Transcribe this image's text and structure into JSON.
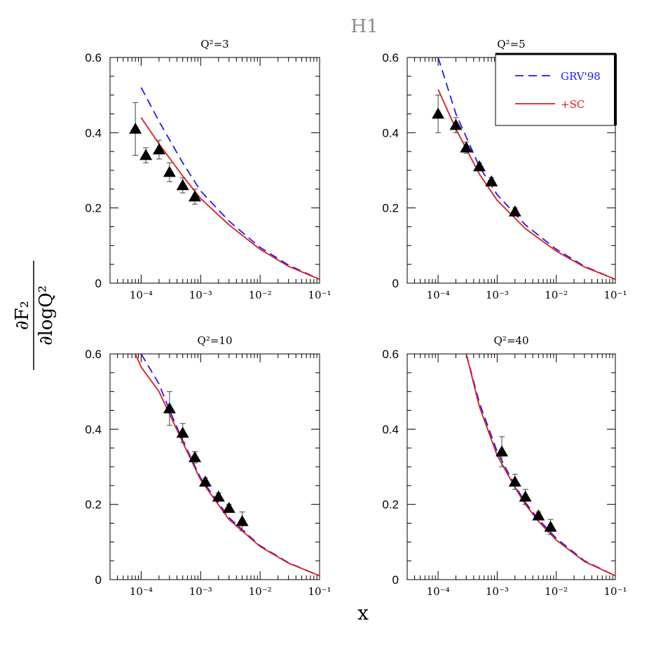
{
  "header": {
    "title": "H1"
  },
  "axes": {
    "ylabel_num": "∂F₂",
    "ylabel_den": "∂logQ²",
    "xlabel": "x"
  },
  "legend": {
    "items": [
      {
        "label": "GRV'98",
        "color": "#1a1aff",
        "dash": "dashed"
      },
      {
        "label": "+SC",
        "color": "#e01a1a",
        "dash": "solid"
      }
    ],
    "placement": "top-right of panel Q²=5"
  },
  "chart_data": [
    {
      "type": "line",
      "title": "Q²=3",
      "xscale": "log",
      "xlim": [
        3e-05,
        0.1
      ],
      "ylim": [
        0,
        0.6
      ],
      "xticklabels": [
        "10⁻⁴",
        "10⁻³",
        "10⁻²",
        "10⁻¹"
      ],
      "yticklabels": [
        "0",
        "0.2",
        "0.4",
        "0.6"
      ],
      "series": [
        {
          "name": "GRV'98",
          "x": [
            0.0001,
            0.0002,
            0.0005,
            0.001,
            0.003,
            0.01,
            0.03,
            0.1
          ],
          "y": [
            0.52,
            0.43,
            0.32,
            0.245,
            0.165,
            0.095,
            0.048,
            0.01
          ]
        },
        {
          "name": "+SC",
          "x": [
            0.0001,
            0.0002,
            0.0005,
            0.001,
            0.003,
            0.01,
            0.03,
            0.1
          ],
          "y": [
            0.44,
            0.37,
            0.285,
            0.225,
            0.155,
            0.09,
            0.045,
            0.01
          ]
        }
      ],
      "points": [
        {
          "x": 8e-05,
          "y": 0.41,
          "err": 0.07
        },
        {
          "x": 0.00012,
          "y": 0.34,
          "err": 0.02
        },
        {
          "x": 0.0002,
          "y": 0.355,
          "err": 0.025
        },
        {
          "x": 0.0003,
          "y": 0.295,
          "err": 0.025
        },
        {
          "x": 0.0005,
          "y": 0.26,
          "err": 0.02
        },
        {
          "x": 0.0008,
          "y": 0.23,
          "err": 0.02
        }
      ]
    },
    {
      "type": "line",
      "title": "Q²=5",
      "xscale": "log",
      "xlim": [
        3e-05,
        0.1
      ],
      "ylim": [
        0,
        0.6
      ],
      "xticklabels": [
        "10⁻⁴",
        "10⁻³",
        "10⁻²",
        "10⁻¹"
      ],
      "yticklabels": [
        "0",
        "0.2",
        "0.4",
        "0.6"
      ],
      "series": [
        {
          "name": "GRV'98",
          "x": [
            0.0001,
            0.0002,
            0.0005,
            0.001,
            0.003,
            0.01,
            0.03,
            0.1
          ],
          "y": [
            0.6,
            0.45,
            0.31,
            0.235,
            0.155,
            0.09,
            0.045,
            0.01
          ]
        },
        {
          "name": "+SC",
          "x": [
            0.0001,
            0.0002,
            0.0005,
            0.001,
            0.003,
            0.01,
            0.03,
            0.1
          ],
          "y": [
            0.515,
            0.41,
            0.29,
            0.22,
            0.145,
            0.085,
            0.043,
            0.01
          ]
        }
      ],
      "points": [
        {
          "x": 0.0001,
          "y": 0.45,
          "err": 0.05
        },
        {
          "x": 0.0002,
          "y": 0.42,
          "err": 0.02
        },
        {
          "x": 0.0003,
          "y": 0.36,
          "err": 0.015
        },
        {
          "x": 0.0005,
          "y": 0.31,
          "err": 0.01
        },
        {
          "x": 0.0008,
          "y": 0.27,
          "err": 0.01
        },
        {
          "x": 0.002,
          "y": 0.19,
          "err": 0.01
        }
      ]
    },
    {
      "type": "line",
      "title": "Q²=10",
      "xscale": "log",
      "xlim": [
        3e-05,
        0.1
      ],
      "ylim": [
        0,
        0.6
      ],
      "xticklabels": [
        "10⁻⁴",
        "10⁻³",
        "10⁻²",
        "10⁻¹"
      ],
      "yticklabels": [
        "0",
        "0.2",
        "0.4",
        "0.6"
      ],
      "series": [
        {
          "name": "GRV'98",
          "x": [
            0.0001,
            0.0002,
            0.0003,
            0.0005,
            0.001,
            0.003,
            0.01,
            0.03,
            0.1
          ],
          "y": [
            0.6,
            0.52,
            0.45,
            0.37,
            0.27,
            0.165,
            0.09,
            0.045,
            0.01
          ]
        },
        {
          "name": "+SC",
          "x": [
            8e-05,
            0.0001,
            0.0002,
            0.0003,
            0.0005,
            0.001,
            0.003,
            0.01,
            0.03,
            0.1
          ],
          "y": [
            0.6,
            0.565,
            0.5,
            0.44,
            0.365,
            0.265,
            0.16,
            0.088,
            0.044,
            0.01
          ]
        }
      ],
      "points": [
        {
          "x": 0.0003,
          "y": 0.455,
          "err": 0.045
        },
        {
          "x": 0.0005,
          "y": 0.39,
          "err": 0.025
        },
        {
          "x": 0.0008,
          "y": 0.325,
          "err": 0.015
        },
        {
          "x": 0.0012,
          "y": 0.26,
          "err": 0.01
        },
        {
          "x": 0.002,
          "y": 0.22,
          "err": 0.01
        },
        {
          "x": 0.003,
          "y": 0.19,
          "err": 0.01
        },
        {
          "x": 0.005,
          "y": 0.155,
          "err": 0.025
        }
      ]
    },
    {
      "type": "line",
      "title": "Q²=40",
      "xscale": "log",
      "xlim": [
        3e-05,
        0.1
      ],
      "ylim": [
        0,
        0.6
      ],
      "xticklabels": [
        "10⁻⁴",
        "10⁻³",
        "10⁻²",
        "10⁻¹"
      ],
      "yticklabels": [
        "0",
        "0.2",
        "0.4",
        "0.6"
      ],
      "series": [
        {
          "name": "GRV'98",
          "x": [
            0.0003,
            0.0005,
            0.001,
            0.002,
            0.003,
            0.005,
            0.01,
            0.03,
            0.1
          ],
          "y": [
            0.6,
            0.47,
            0.34,
            0.25,
            0.205,
            0.16,
            0.11,
            0.05,
            0.01
          ]
        },
        {
          "name": "+SC",
          "x": [
            0.0003,
            0.0005,
            0.001,
            0.002,
            0.003,
            0.005,
            0.01,
            0.03,
            0.1
          ],
          "y": [
            0.6,
            0.46,
            0.33,
            0.245,
            0.2,
            0.155,
            0.105,
            0.048,
            0.01
          ]
        }
      ],
      "points": [
        {
          "x": 0.0012,
          "y": 0.34,
          "err": 0.04
        },
        {
          "x": 0.002,
          "y": 0.26,
          "err": 0.02
        },
        {
          "x": 0.003,
          "y": 0.22,
          "err": 0.02
        },
        {
          "x": 0.005,
          "y": 0.17,
          "err": 0.01
        },
        {
          "x": 0.008,
          "y": 0.14,
          "err": 0.02
        }
      ]
    }
  ]
}
